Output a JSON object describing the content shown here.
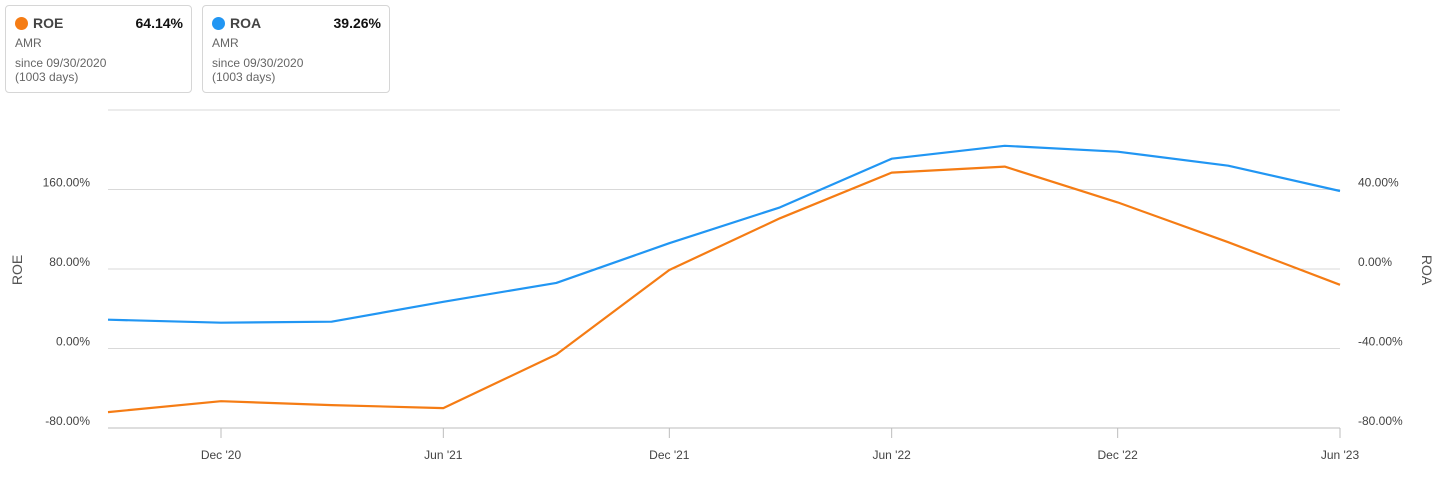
{
  "legend": [
    {
      "name": "ROE",
      "value": "64.14%",
      "ticker": "AMR",
      "since": "since 09/30/2020",
      "days": "(1003 days)",
      "color": "#f57c14"
    },
    {
      "name": "ROA",
      "value": "39.26%",
      "ticker": "AMR",
      "since": "since 09/30/2020",
      "days": "(1003 days)",
      "color": "#2196f3"
    }
  ],
  "chart_data": {
    "type": "line",
    "x": [
      "2020-09-30",
      "2020-12-31",
      "2021-03-31",
      "2021-06-30",
      "2021-09-30",
      "2021-12-31",
      "2022-03-31",
      "2022-06-30",
      "2022-09-30",
      "2022-12-31",
      "2023-03-31",
      "2023-06-30"
    ],
    "x_ticks": [
      "Dec '20",
      "Jun '21",
      "Dec '21",
      "Jun '22",
      "Dec '22",
      "Jun '23"
    ],
    "y_left": {
      "label": "ROE",
      "ticks": [
        "160.00%",
        "80.00%",
        "0.00%",
        "-80.00%"
      ],
      "ylim": [
        -80,
        240
      ]
    },
    "y_right": {
      "label": "ROA",
      "ticks": [
        "40.00%",
        "0.00%",
        "-40.00%",
        "-80.00%"
      ],
      "ylim": [
        -80,
        80
      ]
    },
    "series": [
      {
        "name": "ROE",
        "axis": "left",
        "color": "#f57c14",
        "values": [
          -64,
          -53,
          -57,
          -60,
          -6,
          79,
          131,
          177,
          183,
          147,
          107,
          64.14
        ]
      },
      {
        "name": "ROA",
        "axis": "right",
        "color": "#2196f3",
        "values": [
          -25.5,
          -27,
          -26.5,
          -16.5,
          -7,
          13,
          31,
          55.5,
          62,
          59,
          52,
          39.26
        ]
      }
    ],
    "grid": true
  }
}
